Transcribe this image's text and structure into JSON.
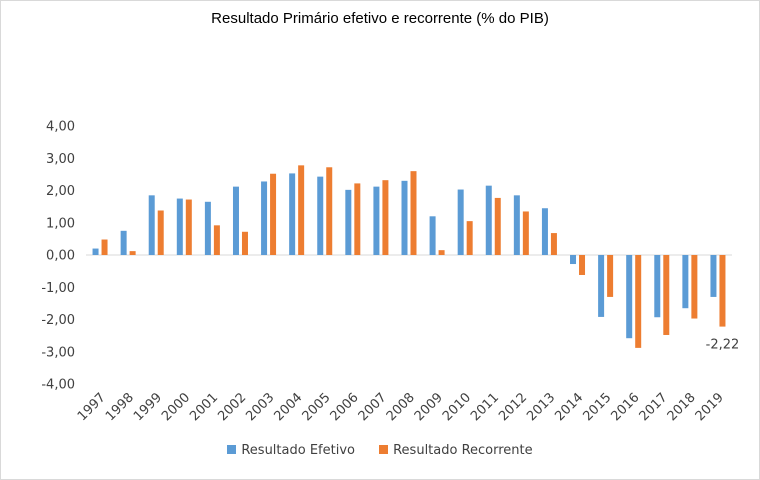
{
  "chart_data": {
    "type": "bar",
    "title": "Resultado Primário efetivo e recorrente (% do PIB)",
    "categories": [
      "1997",
      "1998",
      "1999",
      "2000",
      "2001",
      "2002",
      "2003",
      "2004",
      "2005",
      "2006",
      "2007",
      "2008",
      "2009",
      "2010",
      "2011",
      "2012",
      "2013",
      "2014",
      "2015",
      "2016",
      "2017",
      "2018",
      "2019"
    ],
    "series": [
      {
        "name": "Resultado Efetivo",
        "color": "#5b9bd5",
        "values": [
          0.2,
          0.75,
          1.85,
          1.75,
          1.65,
          2.12,
          2.28,
          2.53,
          2.43,
          2.02,
          2.12,
          2.3,
          1.2,
          2.03,
          2.15,
          1.85,
          1.45,
          -0.28,
          -1.92,
          -2.58,
          -1.93,
          -1.65,
          -1.3
        ]
      },
      {
        "name": "Resultado Recorrente",
        "color": "#ed7d31",
        "values": [
          0.48,
          0.12,
          1.38,
          1.72,
          0.92,
          0.72,
          2.52,
          2.78,
          2.72,
          2.22,
          2.32,
          2.6,
          0.15,
          1.05,
          1.77,
          1.35,
          0.68,
          -0.62,
          -1.3,
          -2.88,
          -2.48,
          -1.97,
          -2.22
        ]
      }
    ],
    "yticks": [
      "4,00",
      "3,00",
      "2,00",
      "1,00",
      "0,00",
      "-1,00",
      "-2,00",
      "-3,00",
      "-4,00"
    ],
    "ylim": [
      -4,
      4
    ],
    "grid": false,
    "legend_position": "bottom",
    "data_labels": [
      {
        "series": 1,
        "category": "2019",
        "text": "-2,22"
      }
    ]
  }
}
